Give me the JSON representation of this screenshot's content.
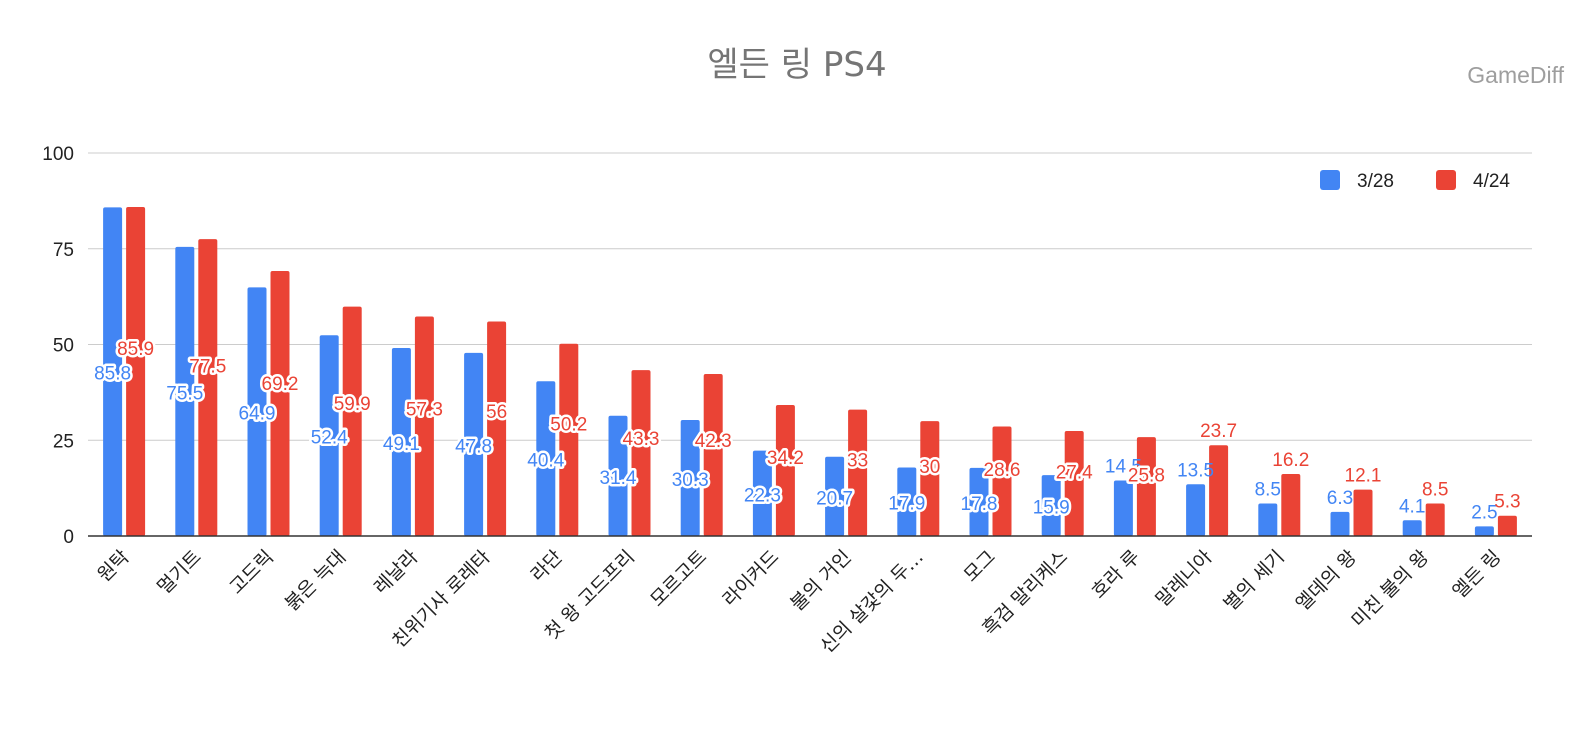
{
  "chart_data": {
    "type": "bar",
    "title": "엘든 링 PS4",
    "watermark": "GameDiff",
    "xlabel": "",
    "ylabel": "",
    "ylim": [
      0,
      100
    ],
    "yticks": [
      "0",
      "25",
      "50",
      "75",
      "100"
    ],
    "grid": true,
    "legend_position": "top-right",
    "categories": [
      "원탁",
      "멀기트",
      "고드릭",
      "붉은 늑대",
      "레날라",
      "친위기사 로레타",
      "라단",
      "첫 왕 고드프리",
      "모르고트",
      "라이커드",
      "불의 거인",
      "신의 살갗의 두…",
      "모그",
      "흑검 말리케스",
      "호라 루",
      "말레니아",
      "별의 세기",
      "엘데의 왕",
      "미친 불의 왕",
      "엘든 링"
    ],
    "series": [
      {
        "name": "3/28",
        "color": "#4285f4",
        "values": [
          85.8,
          75.5,
          64.9,
          52.4,
          49.1,
          47.8,
          40.4,
          31.4,
          30.3,
          22.3,
          20.7,
          17.9,
          17.8,
          15.9,
          14.5,
          13.5,
          8.5,
          6.3,
          4.1,
          2.5
        ],
        "labels": [
          "85.8",
          "75.5",
          "64.9",
          "52.4",
          "49.1",
          "47.8",
          "40.4",
          "31.4",
          "30.3",
          "22.3",
          "20.7",
          "17.9",
          "17.8",
          "15.9",
          "14.5",
          "13.5",
          "8.5",
          "6.3",
          "4.1",
          "2.5"
        ]
      },
      {
        "name": "4/24",
        "color": "#ea4335",
        "values": [
          85.9,
          77.5,
          69.2,
          59.9,
          57.3,
          56,
          50.2,
          43.3,
          42.3,
          34.2,
          33,
          30,
          28.6,
          27.4,
          25.8,
          23.7,
          16.2,
          12.1,
          8.5,
          5.3
        ],
        "labels": [
          "85.9",
          "77.5",
          "69.2",
          "59.9",
          "57.3",
          "56",
          "50.2",
          "43.3",
          "42.3",
          "34.2",
          "33",
          "30",
          "28.6",
          "27.4",
          "25.8",
          "23.7",
          "16.2",
          "12.1",
          "8.5",
          "5.3"
        ]
      }
    ]
  }
}
